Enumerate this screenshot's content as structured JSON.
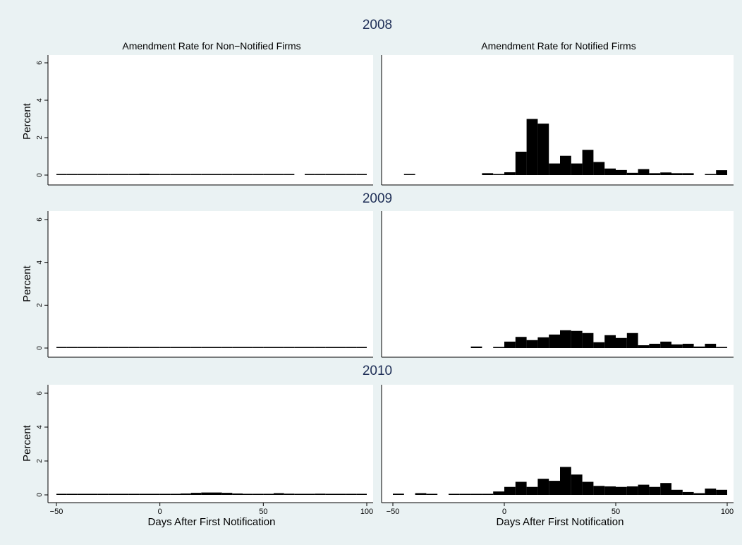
{
  "figure": {
    "column_titles": [
      "Amendment Rate for Non−Notified Firms",
      "Amendment Rate for Notified Firms"
    ],
    "ylabel": "Percent",
    "xlabel": "Days After First Notification",
    "background_color": "#eaf2f3",
    "plot_background_color": "#ffffff",
    "bar_color": "#000000"
  },
  "chart_data": [
    {
      "type": "bar",
      "year": "2008",
      "panel": "Non-Notified Firms",
      "ylabel": "Percent",
      "xlabel": "",
      "xlim": [
        -50,
        100
      ],
      "ylim": [
        0,
        6
      ],
      "xticks": [],
      "yticks": [
        0,
        2,
        4,
        6
      ],
      "bin_width": 5,
      "bins": [
        [
          -50,
          -45,
          0.03
        ],
        [
          -45,
          -40,
          0.05
        ],
        [
          -40,
          -35,
          0.04
        ],
        [
          -35,
          -30,
          0.03
        ],
        [
          -30,
          -25,
          0.04
        ],
        [
          -25,
          -20,
          0.05
        ],
        [
          -20,
          -15,
          0.04
        ],
        [
          -15,
          -10,
          0.05
        ],
        [
          -10,
          -5,
          0.07
        ],
        [
          -5,
          0,
          0.05
        ],
        [
          0,
          5,
          0.03
        ],
        [
          5,
          10,
          0.04
        ],
        [
          10,
          15,
          0.04
        ],
        [
          15,
          20,
          0.03
        ],
        [
          20,
          25,
          0.03
        ],
        [
          25,
          30,
          0.03
        ],
        [
          30,
          35,
          0.03
        ],
        [
          35,
          40,
          0.03
        ],
        [
          40,
          45,
          0.03
        ],
        [
          45,
          50,
          0.03
        ],
        [
          50,
          55,
          0.03
        ],
        [
          55,
          60,
          0.03
        ],
        [
          60,
          65,
          0.03
        ],
        [
          70,
          75,
          0.03
        ],
        [
          75,
          80,
          0.04
        ],
        [
          80,
          85,
          0.03
        ],
        [
          85,
          90,
          0.03
        ],
        [
          90,
          95,
          0.03
        ],
        [
          95,
          100,
          0.03
        ]
      ]
    },
    {
      "type": "bar",
      "year": "2008",
      "panel": "Notified Firms",
      "ylabel": "",
      "xlabel": "",
      "xlim": [
        -50,
        100
      ],
      "ylim": [
        0,
        6
      ],
      "xticks": [],
      "yticks": [],
      "bin_width": 5,
      "bins": [
        [
          -45,
          -40,
          0.05
        ],
        [
          -10,
          -5,
          0.1
        ],
        [
          -5,
          0,
          0.05
        ],
        [
          0,
          5,
          0.15
        ],
        [
          5,
          10,
          1.25
        ],
        [
          10,
          15,
          3.0
        ],
        [
          15,
          20,
          2.75
        ],
        [
          20,
          25,
          0.62
        ],
        [
          25,
          30,
          1.03
        ],
        [
          30,
          35,
          0.62
        ],
        [
          35,
          40,
          1.35
        ],
        [
          40,
          45,
          0.7
        ],
        [
          45,
          50,
          0.35
        ],
        [
          50,
          55,
          0.27
        ],
        [
          55,
          60,
          0.12
        ],
        [
          60,
          65,
          0.32
        ],
        [
          65,
          70,
          0.1
        ],
        [
          70,
          75,
          0.14
        ],
        [
          75,
          80,
          0.1
        ],
        [
          80,
          85,
          0.1
        ],
        [
          90,
          95,
          0.05
        ],
        [
          95,
          100,
          0.26
        ]
      ]
    },
    {
      "type": "bar",
      "year": "2009",
      "panel": "Non-Notified Firms",
      "ylabel": "Percent",
      "xlabel": "",
      "xlim": [
        -50,
        100
      ],
      "ylim": [
        0,
        6
      ],
      "xticks": [],
      "yticks": [
        0,
        2,
        4,
        6
      ],
      "bin_width": 5,
      "bins": [
        [
          -50,
          -45,
          0.02
        ],
        [
          -45,
          -40,
          0.02
        ],
        [
          -40,
          -35,
          0.02
        ],
        [
          -35,
          -30,
          0.02
        ],
        [
          -30,
          -25,
          0.02
        ],
        [
          -25,
          -20,
          0.02
        ],
        [
          -20,
          -15,
          0.02
        ],
        [
          -15,
          -10,
          0.02
        ],
        [
          -10,
          -5,
          0.02
        ],
        [
          -5,
          0,
          0.02
        ],
        [
          0,
          5,
          0.03
        ],
        [
          5,
          10,
          0.03
        ],
        [
          10,
          15,
          0.03
        ],
        [
          15,
          20,
          0.02
        ],
        [
          20,
          25,
          0.03
        ],
        [
          25,
          30,
          0.04
        ],
        [
          30,
          35,
          0.03
        ],
        [
          35,
          40,
          0.03
        ],
        [
          40,
          45,
          0.02
        ],
        [
          45,
          50,
          0.02
        ],
        [
          50,
          55,
          0.02
        ],
        [
          55,
          60,
          0.02
        ],
        [
          60,
          65,
          0.02
        ],
        [
          65,
          70,
          0.02
        ],
        [
          70,
          75,
          0.03
        ],
        [
          75,
          80,
          0.03
        ],
        [
          80,
          85,
          0.02
        ],
        [
          85,
          90,
          0.02
        ],
        [
          90,
          95,
          0.03
        ],
        [
          95,
          100,
          0.02
        ]
      ]
    },
    {
      "type": "bar",
      "year": "2009",
      "panel": "Notified Firms",
      "ylabel": "",
      "xlabel": "",
      "xlim": [
        -50,
        100
      ],
      "ylim": [
        0,
        6
      ],
      "xticks": [],
      "yticks": [],
      "bin_width": 5,
      "bins": [
        [
          -15,
          -10,
          0.07
        ],
        [
          -5,
          0,
          0.05
        ],
        [
          0,
          5,
          0.3
        ],
        [
          5,
          10,
          0.52
        ],
        [
          10,
          15,
          0.37
        ],
        [
          15,
          20,
          0.5
        ],
        [
          20,
          25,
          0.63
        ],
        [
          25,
          30,
          0.83
        ],
        [
          30,
          35,
          0.8
        ],
        [
          35,
          40,
          0.7
        ],
        [
          40,
          45,
          0.27
        ],
        [
          45,
          50,
          0.6
        ],
        [
          50,
          55,
          0.47
        ],
        [
          55,
          60,
          0.7
        ],
        [
          60,
          65,
          0.13
        ],
        [
          65,
          70,
          0.2
        ],
        [
          70,
          75,
          0.3
        ],
        [
          75,
          80,
          0.17
        ],
        [
          80,
          85,
          0.2
        ],
        [
          85,
          90,
          0.07
        ],
        [
          90,
          95,
          0.2
        ],
        [
          95,
          100,
          0.05
        ]
      ]
    },
    {
      "type": "bar",
      "year": "2010",
      "panel": "Non-Notified Firms",
      "ylabel": "Percent",
      "xlabel": "Days After First Notification",
      "xlim": [
        -50,
        100
      ],
      "ylim": [
        0,
        6
      ],
      "xticks": [
        -50,
        0,
        50,
        100
      ],
      "yticks": [
        0,
        2,
        4,
        6
      ],
      "bin_width": 5,
      "bins": [
        [
          -50,
          -45,
          0.04
        ],
        [
          -45,
          -40,
          0.05
        ],
        [
          -40,
          -35,
          0.04
        ],
        [
          -35,
          -30,
          0.04
        ],
        [
          -30,
          -25,
          0.05
        ],
        [
          -25,
          -20,
          0.06
        ],
        [
          -20,
          -15,
          0.05
        ],
        [
          -15,
          -10,
          0.06
        ],
        [
          -10,
          -5,
          0.06
        ],
        [
          -5,
          0,
          0.05
        ],
        [
          0,
          5,
          0.06
        ],
        [
          5,
          10,
          0.06
        ],
        [
          10,
          15,
          0.08
        ],
        [
          15,
          20,
          0.12
        ],
        [
          20,
          25,
          0.14
        ],
        [
          25,
          30,
          0.14
        ],
        [
          30,
          35,
          0.12
        ],
        [
          35,
          40,
          0.08
        ],
        [
          40,
          45,
          0.06
        ],
        [
          45,
          50,
          0.05
        ],
        [
          50,
          55,
          0.06
        ],
        [
          55,
          60,
          0.1
        ],
        [
          60,
          65,
          0.07
        ],
        [
          65,
          70,
          0.06
        ],
        [
          70,
          75,
          0.06
        ],
        [
          75,
          80,
          0.07
        ],
        [
          80,
          85,
          0.05
        ],
        [
          85,
          90,
          0.05
        ],
        [
          90,
          95,
          0.06
        ],
        [
          95,
          100,
          0.05
        ]
      ]
    },
    {
      "type": "bar",
      "year": "2010",
      "panel": "Notified Firms",
      "ylabel": "",
      "xlabel": "Days After First Notification",
      "xlim": [
        -50,
        100
      ],
      "ylim": [
        0,
        6
      ],
      "xticks": [
        -50,
        0,
        50,
        100
      ],
      "yticks": [],
      "bin_width": 5,
      "bins": [
        [
          -50,
          -45,
          0.07
        ],
        [
          -40,
          -35,
          0.1
        ],
        [
          -35,
          -30,
          0.05
        ],
        [
          -25,
          -20,
          0.05
        ],
        [
          -20,
          -15,
          0.05
        ],
        [
          -15,
          -10,
          0.05
        ],
        [
          -10,
          -5,
          0.05
        ],
        [
          -5,
          0,
          0.2
        ],
        [
          0,
          5,
          0.47
        ],
        [
          5,
          10,
          0.77
        ],
        [
          10,
          15,
          0.47
        ],
        [
          15,
          20,
          0.95
        ],
        [
          20,
          25,
          0.83
        ],
        [
          25,
          30,
          1.65
        ],
        [
          30,
          35,
          1.2
        ],
        [
          35,
          40,
          0.77
        ],
        [
          40,
          45,
          0.53
        ],
        [
          45,
          50,
          0.5
        ],
        [
          50,
          55,
          0.47
        ],
        [
          55,
          60,
          0.5
        ],
        [
          60,
          65,
          0.6
        ],
        [
          65,
          70,
          0.47
        ],
        [
          70,
          75,
          0.7
        ],
        [
          75,
          80,
          0.3
        ],
        [
          80,
          85,
          0.17
        ],
        [
          85,
          90,
          0.1
        ],
        [
          90,
          95,
          0.37
        ],
        [
          95,
          100,
          0.3
        ]
      ]
    }
  ]
}
